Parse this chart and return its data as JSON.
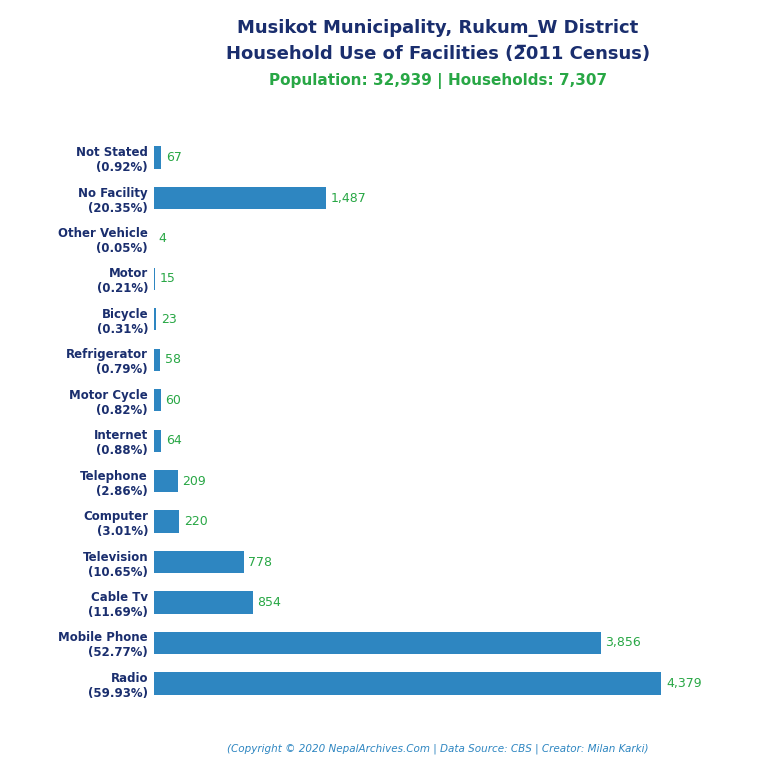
{
  "title_line1": "Musikot Municipality, Rukum_W District",
  "title_line2": "Household Use of Facilities (2̅011 Census)",
  "subtitle": "Population: 32,939 | Households: 7,307",
  "footer": "(Copyright © 2020 NepalArchives.Com | Data Source: CBS | Creator: Milan Karki)",
  "categories": [
    "Not Stated\n(0.92%)",
    "No Facility\n(20.35%)",
    "Other Vehicle\n(0.05%)",
    "Motor\n(0.21%)",
    "Bicycle\n(0.31%)",
    "Refrigerator\n(0.79%)",
    "Motor Cycle\n(0.82%)",
    "Internet\n(0.88%)",
    "Telephone\n(2.86%)",
    "Computer\n(3.01%)",
    "Television\n(10.65%)",
    "Cable Tv\n(11.69%)",
    "Mobile Phone\n(52.77%)",
    "Radio\n(59.93%)"
  ],
  "value_labels": [
    "67",
    "1,487",
    "4",
    "15",
    "23",
    "58",
    "60",
    "64",
    "209",
    "220",
    "778",
    "854",
    "3,856",
    "4,379"
  ],
  "values": [
    67,
    1487,
    4,
    15,
    23,
    58,
    60,
    64,
    209,
    220,
    778,
    854,
    3856,
    4379
  ],
  "bar_color": "#2e86c1",
  "title_color": "#1a2e6e",
  "subtitle_color": "#28a745",
  "value_color": "#28a745",
  "footer_color": "#2e86c1",
  "background_color": "#ffffff",
  "xlim": [
    0,
    4900
  ]
}
